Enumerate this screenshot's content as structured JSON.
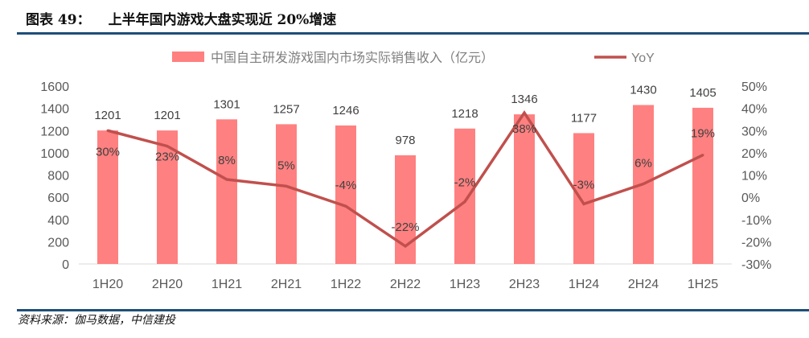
{
  "title": {
    "label": "图表 49：",
    "text": "上半年国内游戏大盘实现近 20%增速"
  },
  "source": "资料来源：伽马数据，中信建投",
  "chart_data": {
    "type": "bar+line",
    "categories": [
      "1H20",
      "2H20",
      "1H21",
      "2H21",
      "1H22",
      "2H22",
      "1H23",
      "2H23",
      "1H24",
      "2H24",
      "1H25"
    ],
    "series": [
      {
        "name": "中国自主研发游戏国内市场实际销售收入（亿元）",
        "type": "bar",
        "axis": "left",
        "color": "#ff8080",
        "values": [
          1201,
          1201,
          1301,
          1257,
          1246,
          978,
          1218,
          1346,
          1177,
          1430,
          1405
        ]
      },
      {
        "name": "YoY",
        "type": "line",
        "axis": "right",
        "color": "#c0504d",
        "values": [
          30,
          23,
          8,
          5,
          -4,
          -22,
          -2,
          38,
          -3,
          6,
          19
        ],
        "labels": [
          "30%",
          "23%",
          "8%",
          "5%",
          "-4%",
          "-22%",
          "-2%",
          "38%",
          "-3%",
          "6%",
          "19%"
        ]
      }
    ],
    "left_axis": {
      "ylim": [
        0,
        1600
      ],
      "ticks": [
        "0",
        "200",
        "400",
        "600",
        "800",
        "1000",
        "1200",
        "1400",
        "1600"
      ]
    },
    "right_axis": {
      "ylim": [
        -30,
        50
      ],
      "ticks": [
        "-30%",
        "-20%",
        "-10%",
        "0%",
        "10%",
        "20%",
        "30%",
        "40%",
        "50%"
      ]
    },
    "legend": "top-center",
    "grid": false
  }
}
